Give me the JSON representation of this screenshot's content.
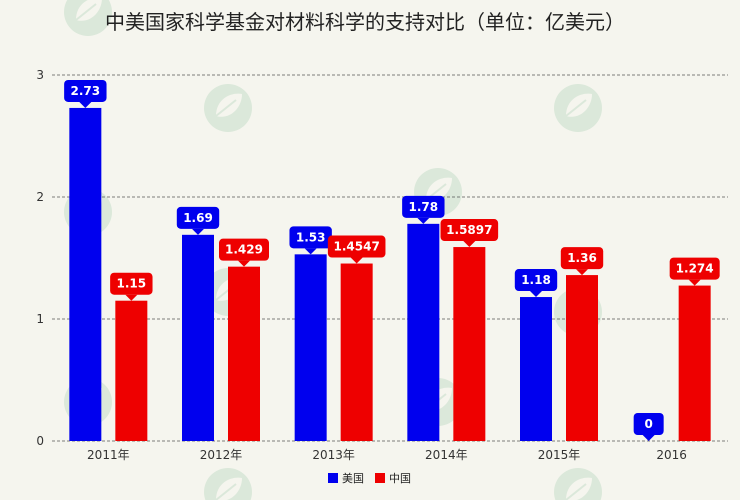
{
  "chart_data": {
    "type": "bar",
    "title": "中美国家科学基金对材料科学的支持对比（单位：亿美元）",
    "categories": [
      "2011年",
      "2012年",
      "2013年",
      "2014年",
      "2015年",
      "2016"
    ],
    "series": [
      {
        "name": "美国",
        "color": "#0000ee",
        "values": [
          2.73,
          1.69,
          1.53,
          1.78,
          1.18,
          0
        ],
        "labels": [
          "2.73",
          "1.69",
          "1.53",
          "1.78",
          "1.18",
          "0"
        ]
      },
      {
        "name": "中国",
        "color": "#ee0000",
        "values": [
          1.15,
          1.429,
          1.4547,
          1.5897,
          1.36,
          1.274
        ],
        "labels": [
          "1.15",
          "1.429",
          "1.4547",
          "1.5897",
          "1.36",
          "1.274"
        ]
      }
    ],
    "ylim": [
      0,
      3
    ],
    "yticks": [
      "0",
      "1",
      "2",
      "3"
    ],
    "xlabel": "",
    "ylabel": "",
    "grid": "horizontal dashed",
    "legend": "bottom-center"
  }
}
